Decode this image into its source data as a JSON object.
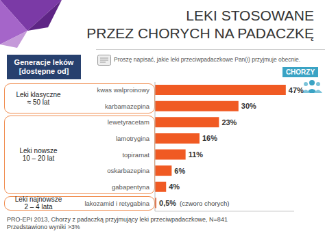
{
  "chart_data": {
    "type": "bar",
    "orientation": "horizontal",
    "title": [
      "LEKI STOSOWANE",
      "PRZEZ CHORYCH NA PADACZKĘ"
    ],
    "subtitle": "Proszę napisać, jakie leki przeciwpadaczkowe Pan(i) przyjmuje obecnie.",
    "categories": [
      "kwas walproinowy",
      "karbamazepina",
      "lewetyracetam",
      "lamotrygina",
      "topiramat",
      "oskarbazepina",
      "gabapentyna",
      "lakozamid i retygabina"
    ],
    "values": [
      47,
      30,
      23,
      16,
      11,
      6,
      4,
      0.5
    ],
    "value_labels": [
      "47%",
      "30%",
      "23%",
      "16%",
      "11%",
      "6%",
      "4%",
      "0,5%"
    ],
    "color": "#f05a23",
    "xlim": [
      0,
      50
    ],
    "data_labels": true,
    "tick_labels": "y",
    "grid": false,
    "group_header": "Generacje leków [dostępne od]",
    "groups": [
      {
        "label": [
          "Leki klasyczne",
          "≈ 50 lat"
        ],
        "members": [
          "kwas walproinowy",
          "karbamazepina"
        ]
      },
      {
        "label": [
          "Leki nowsze",
          "10 – 20 lat"
        ],
        "members": [
          "lewetyracetam",
          "lamotrygina",
          "topiramat",
          "oskarbazepina",
          "gabapentyna"
        ]
      },
      {
        "label": [
          "Leki najnowsze",
          "2 – 4 lata"
        ],
        "members": [
          "lakozamid i retygabina"
        ]
      }
    ],
    "annotations": [
      {
        "category": "lakozamid i retygabina",
        "text": "(czworo chorych)"
      }
    ],
    "badge": "CHORZY",
    "source": [
      "PRO-EPI 2013, Chorzy z padaczką przyjmujący leki przeciwpadaczkowe, N=841",
      "Przedstawiono wyniki >3%"
    ]
  }
}
